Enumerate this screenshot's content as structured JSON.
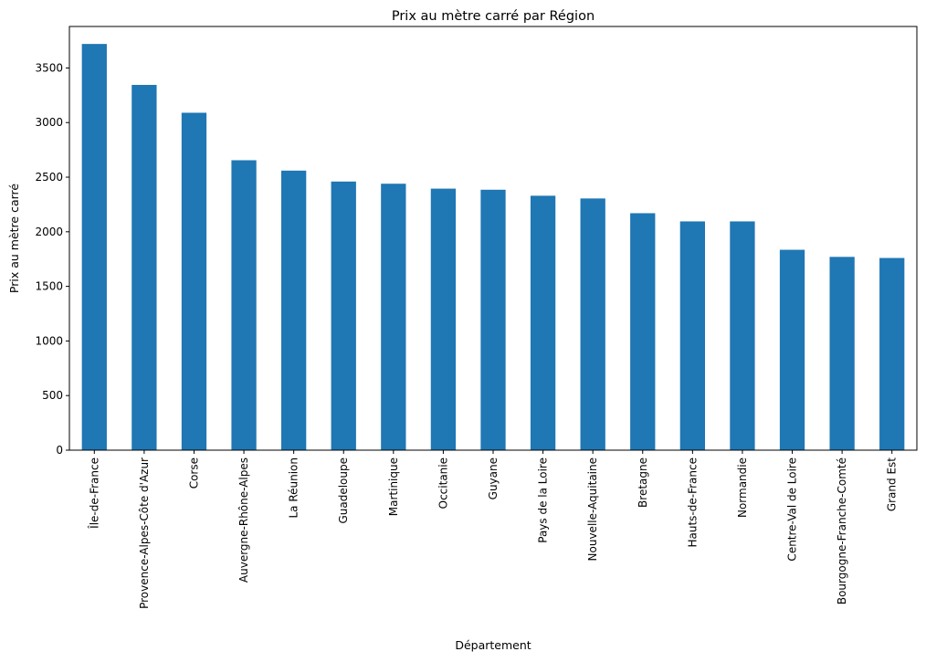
{
  "chart_data": {
    "type": "bar",
    "title": "Prix au mètre carré par Région",
    "xlabel": "Département",
    "ylabel": "Prix au mètre carré",
    "categories": [
      "Île-de-France",
      "Provence-Alpes-Côte d'Azur",
      "Corse",
      "Auvergne-Rhône-Alpes",
      "La Réunion",
      "Guadeloupe",
      "Martinique",
      "Occitanie",
      "Guyane",
      "Pays de la Loire",
      "Nouvelle-Aquitaine",
      "Bretagne",
      "Hauts-de-France",
      "Normandie",
      "Centre-Val de Loire",
      "Bourgogne-Franche-Comté",
      "Grand Est"
    ],
    "values": [
      3720,
      3345,
      3090,
      2655,
      2560,
      2460,
      2440,
      2395,
      2385,
      2330,
      2305,
      2170,
      2095,
      2095,
      1835,
      1770,
      1760
    ],
    "yticks": [
      "0",
      "500",
      "1000",
      "1500",
      "2000",
      "2500",
      "3000",
      "3500"
    ],
    "ylim": [
      0,
      3880
    ],
    "bar_color": "#1f77b4",
    "grid": false,
    "legend": "none"
  }
}
